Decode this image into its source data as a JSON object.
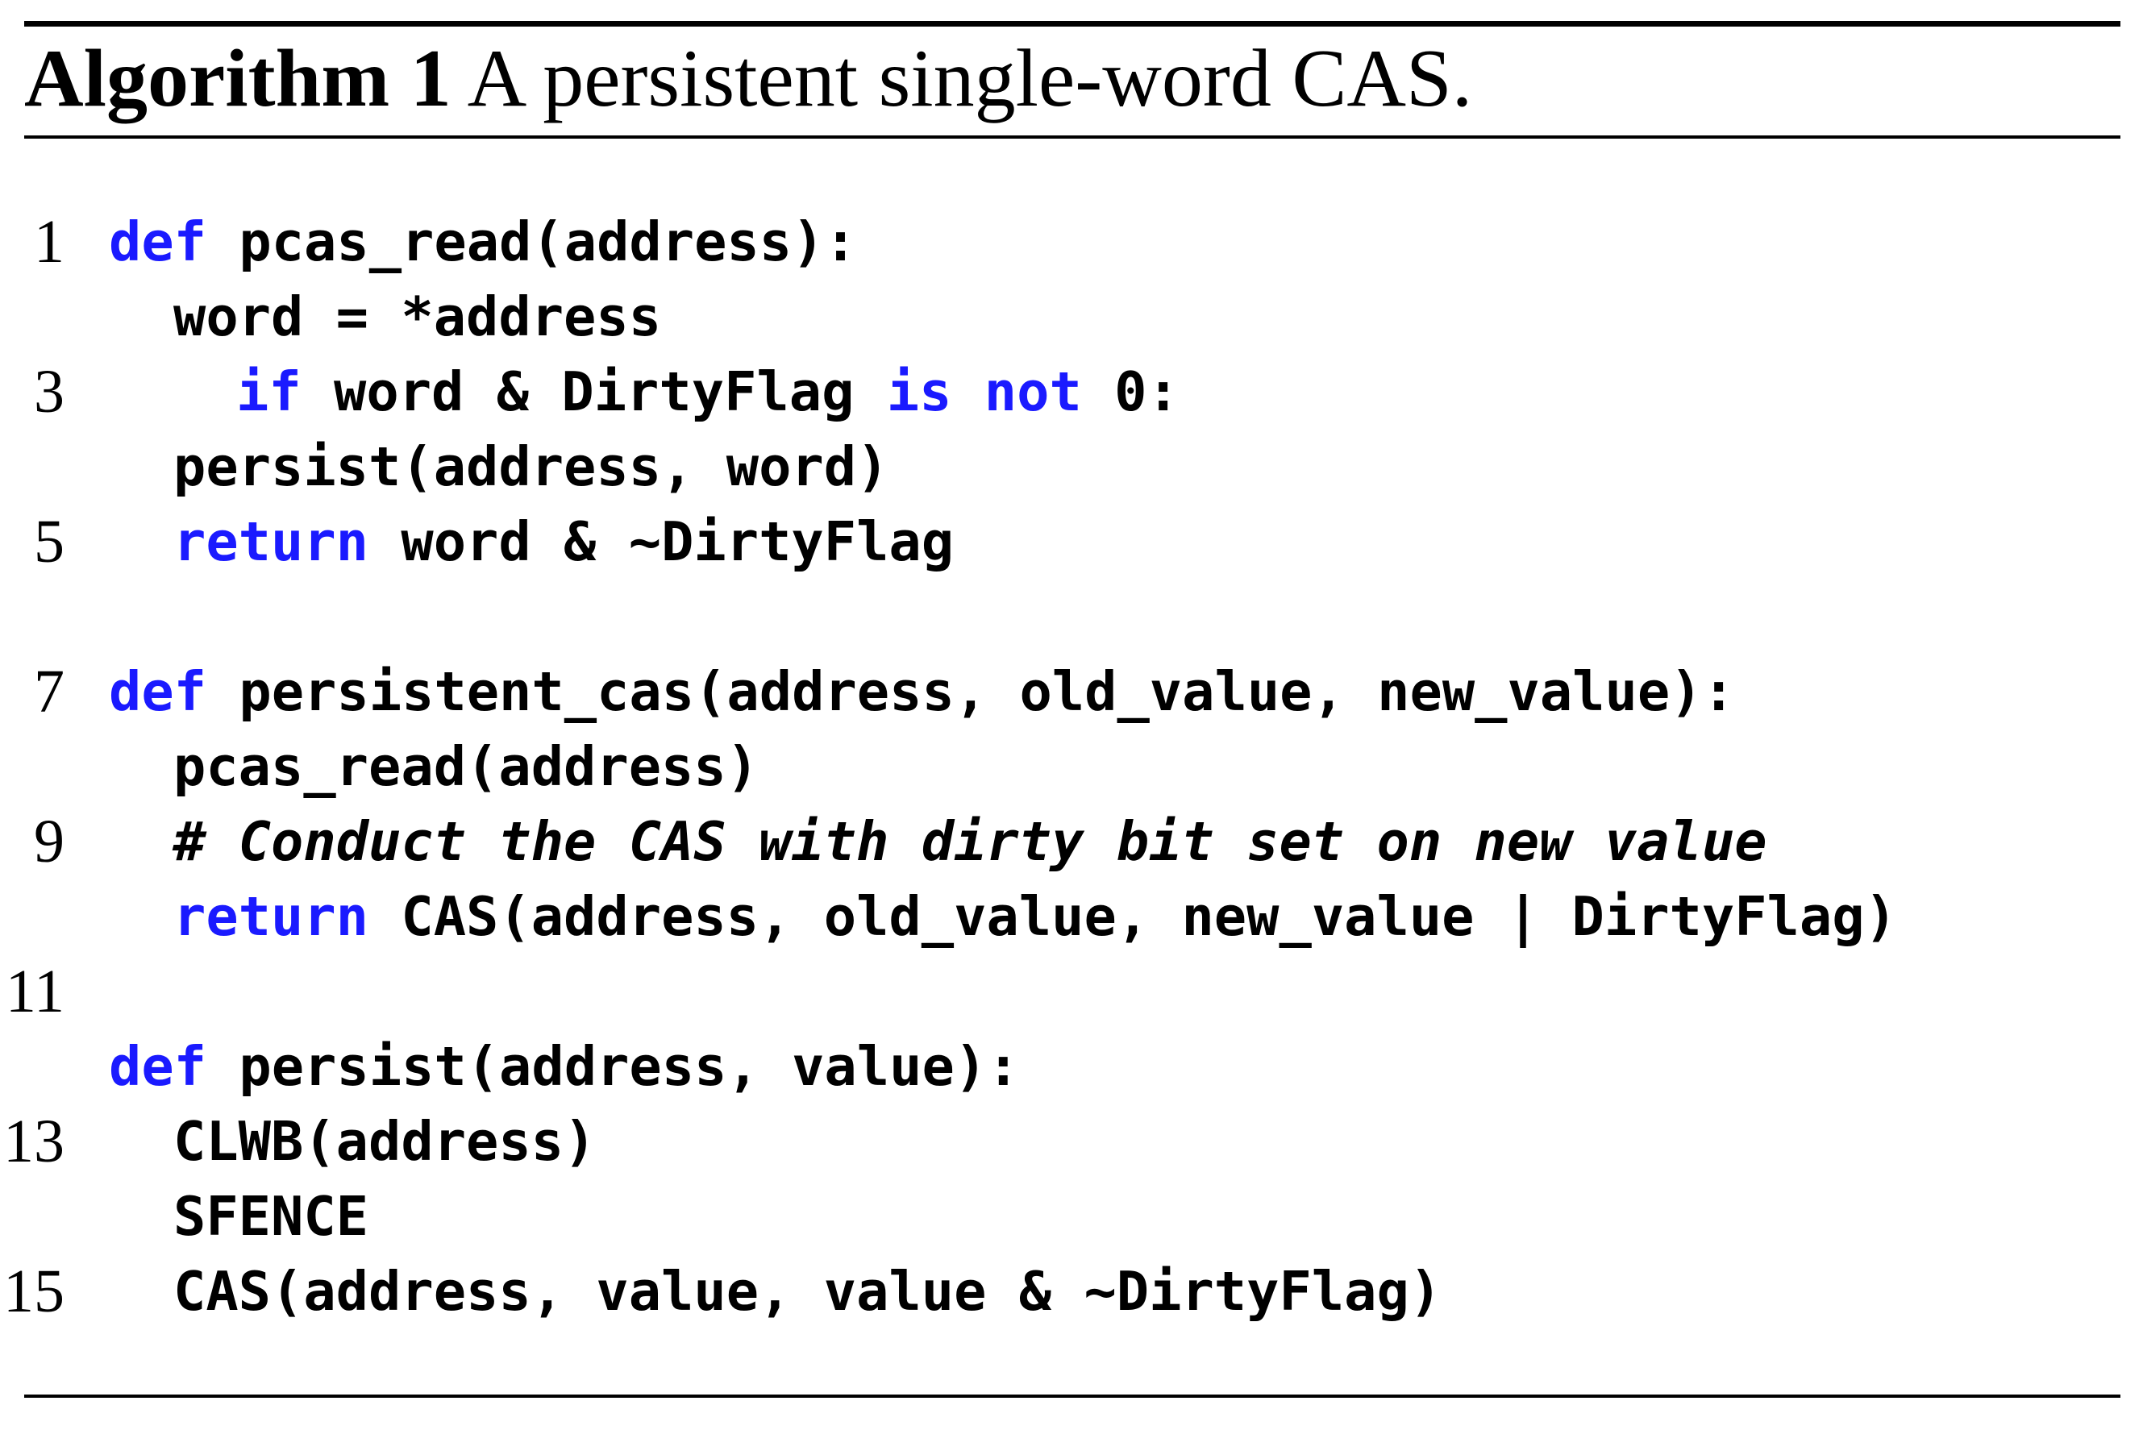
{
  "caption": {
    "label": "Algorithm 1",
    "text": "A persistent single-word CAS."
  },
  "accent_color": "#1a1aff",
  "lines": [
    {
      "num": "1",
      "parts": [
        {
          "t": "def",
          "kw": true
        },
        {
          "t": " pcas_read(address):"
        }
      ]
    },
    {
      "num": "",
      "parts": [
        {
          "t": "word = *address"
        }
      ]
    },
    {
      "num": "3",
      "parts": [
        {
          "t": "if",
          "kw": true
        },
        {
          "t": " word & DirtyFlag "
        },
        {
          "t": "is",
          "kw": true
        },
        {
          "t": " "
        },
        {
          "t": "not",
          "kw": true
        },
        {
          "t": " 0:"
        }
      ]
    },
    {
      "num": "",
      "parts": [
        {
          "t": "persist(address, word)"
        }
      ]
    },
    {
      "num": "5",
      "parts": [
        {
          "t": "return",
          "kw": true
        },
        {
          "t": " word & ~DirtyFlag"
        }
      ]
    },
    {
      "num": "",
      "parts": []
    },
    {
      "num": "7",
      "parts": [
        {
          "t": "def",
          "kw": true
        },
        {
          "t": " persistent_cas(address, old_value, new_value):"
        }
      ]
    },
    {
      "num": "",
      "parts": [
        {
          "t": "pcas_read(address)"
        }
      ]
    },
    {
      "num": "9",
      "parts": [
        {
          "t": "# Conduct the CAS with dirty bit set on new value",
          "cm": true
        }
      ]
    },
    {
      "num": "",
      "parts": [
        {
          "t": "return",
          "kw": true
        },
        {
          "t": " CAS(address, old_value, new_value | DirtyFlag)"
        }
      ]
    },
    {
      "num": "11",
      "parts": []
    },
    {
      "num": "",
      "parts": [
        {
          "t": "def",
          "kw": true
        },
        {
          "t": " persist(address, value):"
        }
      ]
    },
    {
      "num": "13",
      "parts": [
        {
          "t": "CLWB(address)"
        }
      ]
    },
    {
      "num": "",
      "parts": [
        {
          "t": "SFENCE"
        }
      ]
    },
    {
      "num": "15",
      "parts": [
        {
          "t": "CAS(address, value, value & ~DirtyFlag)"
        }
      ]
    }
  ]
}
